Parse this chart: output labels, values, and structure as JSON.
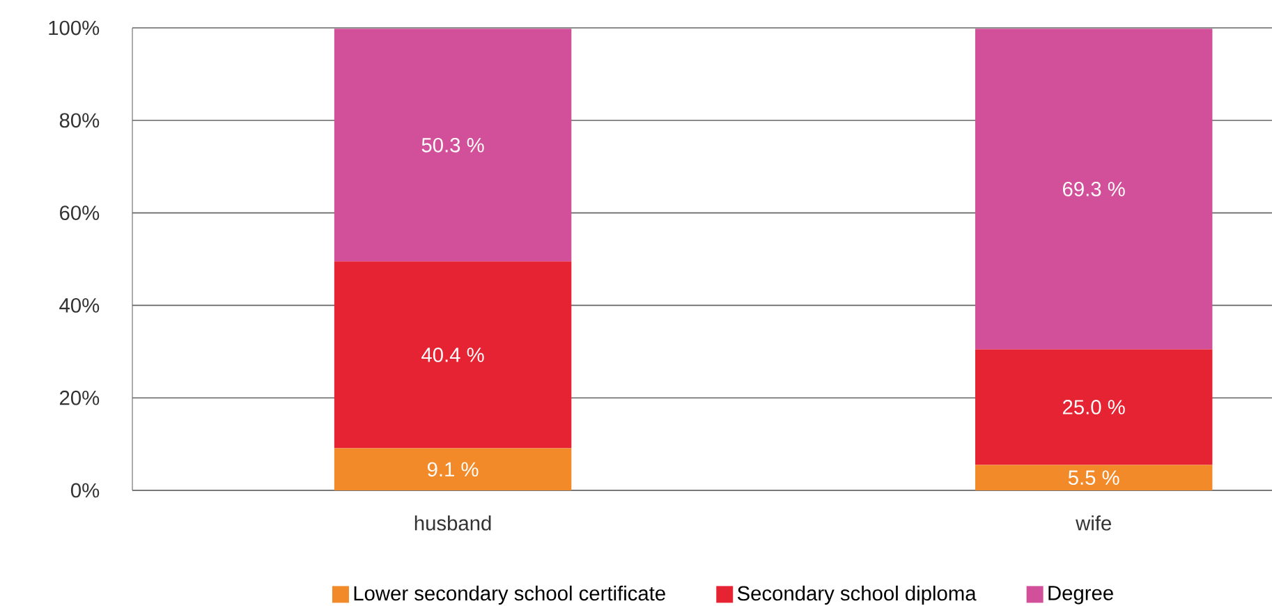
{
  "chart_data": {
    "type": "bar",
    "stacked": true,
    "categories": [
      "husband",
      "wife"
    ],
    "series": [
      {
        "name": "Lower secondary school certificate",
        "color": "#f28a2a",
        "values": [
          9.1,
          5.5
        ],
        "value_labels": [
          "9.1 %",
          "5.5 %"
        ]
      },
      {
        "name": "Secondary school diploma",
        "color": "#e62333",
        "values": [
          40.4,
          25.0
        ],
        "value_labels": [
          "40.4 %",
          "25.0 %"
        ]
      },
      {
        "name": "Degree",
        "color": "#d24f99",
        "values": [
          50.3,
          69.3
        ],
        "value_labels": [
          "50.3 %",
          "69.3 %"
        ]
      }
    ],
    "ylim": [
      0,
      100
    ],
    "yticks": [
      {
        "value": 0,
        "label": "0%"
      },
      {
        "value": 20,
        "label": "20%"
      },
      {
        "value": 40,
        "label": "40%"
      },
      {
        "value": 60,
        "label": "60%"
      },
      {
        "value": 80,
        "label": "80%"
      },
      {
        "value": 100,
        "label": "100%"
      }
    ],
    "grid": "y",
    "legend": "bottom"
  }
}
